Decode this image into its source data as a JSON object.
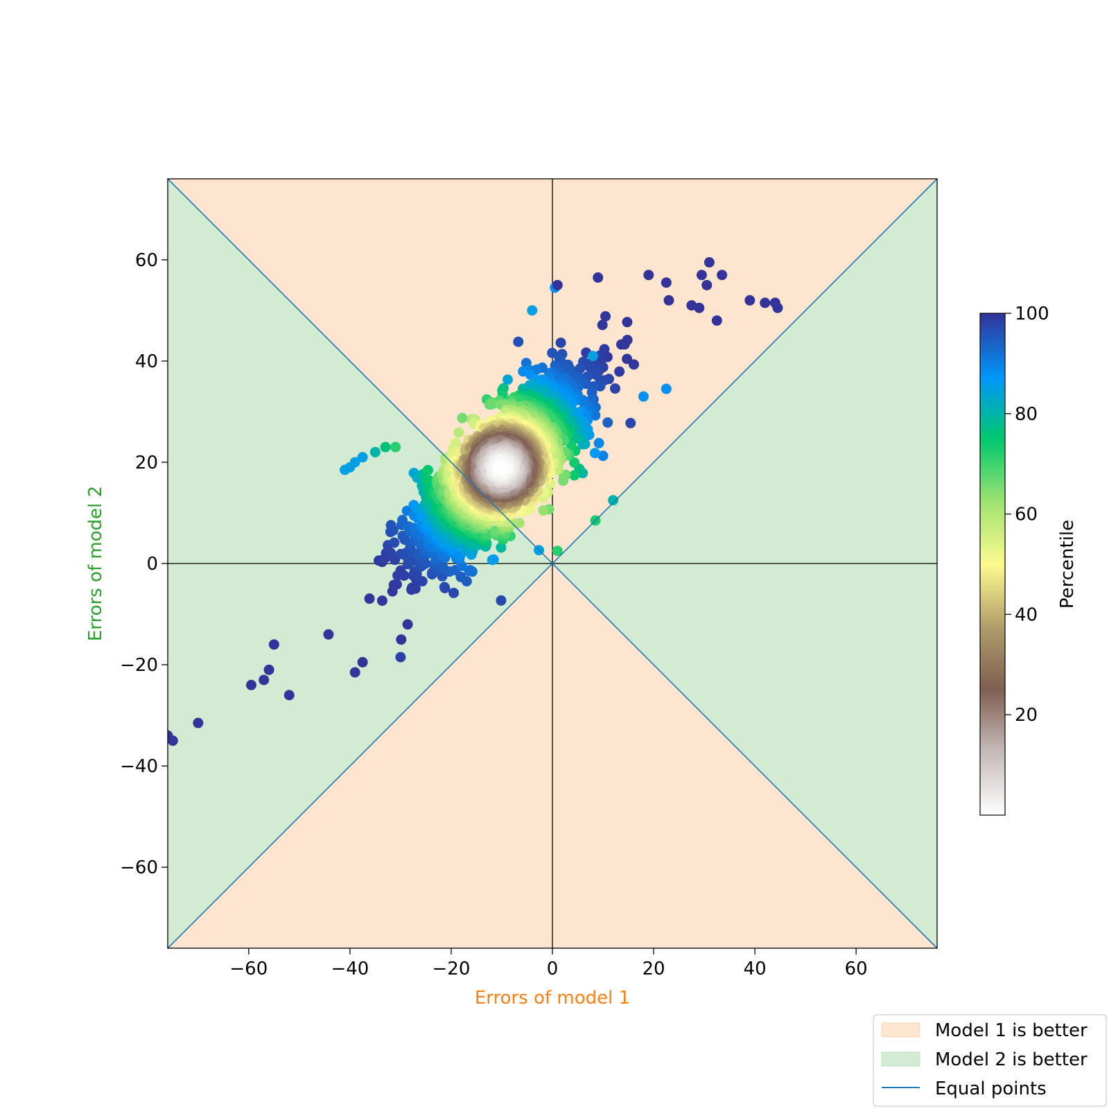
{
  "chart_data": {
    "type": "scatter",
    "title": "",
    "xlabel": "Errors of model 1",
    "ylabel": "Errors of model 2",
    "xlabel_color": "#ff7f0e",
    "ylabel_color": "#2ca02c",
    "xlim": [
      -76,
      76
    ],
    "ylim": [
      -76,
      76
    ],
    "xticks": [
      -60,
      -40,
      -20,
      0,
      20,
      40,
      60
    ],
    "yticks": [
      -60,
      -40,
      -20,
      0,
      20,
      40,
      60
    ],
    "xtick_labels": [
      "−60",
      "−40",
      "−20",
      "0",
      "20",
      "40",
      "60"
    ],
    "ytick_labels": [
      "−60",
      "−40",
      "−20",
      "0",
      "20",
      "40",
      "60"
    ],
    "grid": false,
    "regions": [
      {
        "name": "Model 1 is better",
        "color": "#fde5d0"
      },
      {
        "name": "Model 2 is better",
        "color": "#d3ebd3"
      }
    ],
    "equal_line": {
      "name": "Equal points",
      "color": "#1f77b4"
    },
    "colorbar": {
      "label": "Percentile",
      "colormap": "terrain_r",
      "range": [
        0,
        100
      ],
      "ticks": [
        20,
        40,
        60,
        80,
        100
      ],
      "tick_labels": [
        "20",
        "40",
        "60",
        "80",
        "100"
      ]
    },
    "distribution": {
      "center": [
        -10,
        19
      ],
      "n_points": 2000,
      "note_color_encoding": "point color = percentile of distance from center"
    },
    "outliers": [
      {
        "x": -76,
        "y": -34,
        "percentile": 100
      },
      {
        "x": -75,
        "y": -35,
        "percentile": 100
      },
      {
        "x": -70,
        "y": -31.5,
        "percentile": 100
      },
      {
        "x": -59.5,
        "y": -24,
        "percentile": 100
      },
      {
        "x": -57,
        "y": -23,
        "percentile": 100
      },
      {
        "x": -52,
        "y": -26,
        "percentile": 100
      },
      {
        "x": -56,
        "y": -21,
        "percentile": 100
      },
      {
        "x": -55,
        "y": -16,
        "percentile": 100
      },
      {
        "x": -39,
        "y": -21.5,
        "percentile": 100
      },
      {
        "x": -37.5,
        "y": -19.5,
        "percentile": 100
      },
      {
        "x": -30,
        "y": -18.5,
        "percentile": 98
      },
      {
        "x": 31,
        "y": 59.5,
        "percentile": 100
      },
      {
        "x": 29.5,
        "y": 57,
        "percentile": 100
      },
      {
        "x": 33.5,
        "y": 57,
        "percentile": 100
      },
      {
        "x": 30.5,
        "y": 55,
        "percentile": 100
      },
      {
        "x": 27.5,
        "y": 51,
        "percentile": 100
      },
      {
        "x": 29,
        "y": 50.5,
        "percentile": 100
      },
      {
        "x": 32.5,
        "y": 48,
        "percentile": 100
      },
      {
        "x": 39,
        "y": 52,
        "percentile": 100
      },
      {
        "x": 42,
        "y": 51.5,
        "percentile": 100
      },
      {
        "x": 44,
        "y": 51.5,
        "percentile": 100
      },
      {
        "x": 44.5,
        "y": 50.5,
        "percentile": 100
      },
      {
        "x": 12,
        "y": 12.5,
        "percentile": 80
      },
      {
        "x": 8.5,
        "y": 8.5,
        "percentile": 73
      },
      {
        "x": 1,
        "y": 2.5,
        "percentile": 72
      },
      {
        "x": -41,
        "y": 18.5,
        "percentile": 85
      },
      {
        "x": -40,
        "y": 19,
        "percentile": 85
      },
      {
        "x": -39,
        "y": 20,
        "percentile": 85
      },
      {
        "x": -37.5,
        "y": 21,
        "percentile": 85
      },
      {
        "x": -35,
        "y": 22,
        "percentile": 80
      },
      {
        "x": -33,
        "y": 23,
        "percentile": 76
      },
      {
        "x": -31,
        "y": 23,
        "percentile": 72
      },
      {
        "x": 8,
        "y": 41,
        "percentile": 85
      },
      {
        "x": -4,
        "y": 50,
        "percentile": 85
      },
      {
        "x": 0.5,
        "y": 54.5,
        "percentile": 88
      },
      {
        "x": 1,
        "y": 55,
        "percentile": 100
      },
      {
        "x": 9,
        "y": 56.5,
        "percentile": 100
      },
      {
        "x": 19,
        "y": 57,
        "percentile": 100
      },
      {
        "x": 22.5,
        "y": 55.5,
        "percentile": 100
      },
      {
        "x": 23,
        "y": 52,
        "percentile": 100
      },
      {
        "x": 22.5,
        "y": 34.5,
        "percentile": 88
      },
      {
        "x": 18,
        "y": 33,
        "percentile": 88
      }
    ],
    "legend": {
      "placement": "bottom-right",
      "entries": [
        {
          "label": "Model 1 is better",
          "kind": "patch"
        },
        {
          "label": "Model 2 is better",
          "kind": "patch"
        },
        {
          "label": "Equal points",
          "kind": "line"
        }
      ]
    }
  }
}
